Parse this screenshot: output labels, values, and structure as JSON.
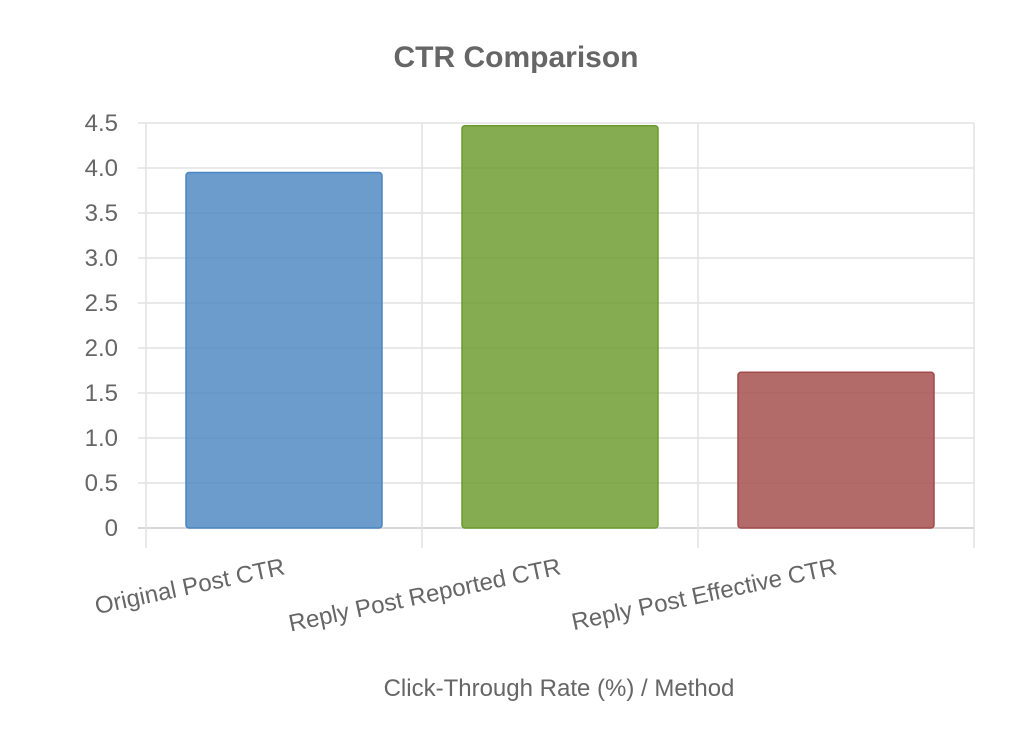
{
  "chart_data": {
    "type": "bar",
    "title": "CTR Comparison",
    "xlabel": "Click-Through Rate (%) / Method",
    "ylabel": "",
    "categories": [
      "Original Post CTR",
      "Reply Post Reported CTR",
      "Reply Post Effective CTR"
    ],
    "values": [
      3.95,
      4.47,
      1.73
    ],
    "ylim": [
      0,
      4.5
    ],
    "yticks": [
      "0",
      "0.5",
      "1.0",
      "1.5",
      "2.0",
      "2.5",
      "3.0",
      "3.5",
      "4.0",
      "4.5"
    ],
    "colors": [
      "#4a86bf",
      "#6b9a2c",
      "#a24a49"
    ],
    "grid": true,
    "legend": "none"
  }
}
